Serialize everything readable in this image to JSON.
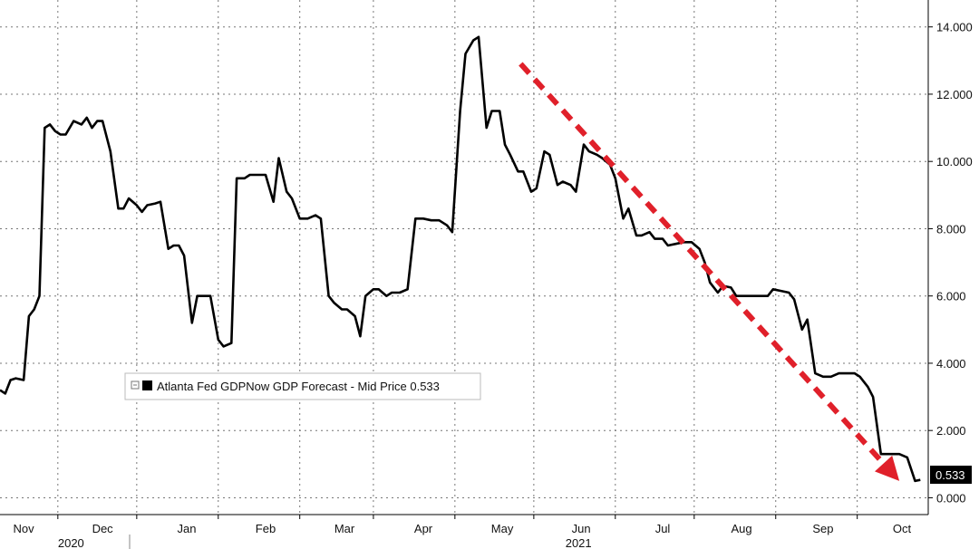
{
  "chart_data": {
    "type": "line",
    "title": "",
    "xlabel": "",
    "ylabel": "",
    "ylim": [
      -0.5,
      14.8
    ],
    "y_ticks": [
      "0.000",
      "2.000",
      "4.000",
      "6.000",
      "8.000",
      "10.000",
      "12.000",
      "14.000"
    ],
    "y_tick_values": [
      0,
      2,
      4,
      6,
      8,
      10,
      12,
      14
    ],
    "x_range": [
      "2020-10-24",
      "2021-10-12"
    ],
    "x_month_labels": [
      {
        "label": "Nov",
        "date": "2020-11-02"
      },
      {
        "label": "Dec",
        "date": "2020-12-02"
      },
      {
        "label": "Jan",
        "date": "2021-01-03"
      },
      {
        "label": "Feb",
        "date": "2021-02-02"
      },
      {
        "label": "Mar",
        "date": "2021-03-04"
      },
      {
        "label": "Apr",
        "date": "2021-04-03"
      },
      {
        "label": "May",
        "date": "2021-05-03"
      },
      {
        "label": "Jun",
        "date": "2021-06-02"
      },
      {
        "label": "Jul",
        "date": "2021-07-03"
      },
      {
        "label": "Aug",
        "date": "2021-08-02"
      },
      {
        "label": "Sep",
        "date": "2021-09-02"
      },
      {
        "label": "Oct",
        "date": "2021-10-02"
      }
    ],
    "x_year_labels": [
      {
        "label": "2020",
        "date": "2020-11-20"
      },
      {
        "label": "2021",
        "date": "2021-06-01"
      }
    ],
    "x_gridlines": [
      "2020-11-15",
      "2020-12-15",
      "2021-01-15",
      "2021-02-15",
      "2021-03-15",
      "2021-04-15",
      "2021-05-15",
      "2021-06-15",
      "2021-07-15",
      "2021-08-15",
      "2021-09-15"
    ],
    "legend": {
      "position": "lower-left",
      "entries": [
        "Atlanta Fed GDPNow GDP Forecast - Mid Price 0.533"
      ]
    },
    "last_value_label": "0.533",
    "trend_arrow": {
      "color": "#e0202a",
      "from": {
        "x": "2021-05-10",
        "y": 12.9
      },
      "to": {
        "x": "2021-10-01",
        "y": 0.5
      }
    },
    "series": [
      {
        "name": "Atlanta Fed GDPNow GDP Forecast - Mid Price",
        "color": "#000000",
        "points": [
          [
            "2020-10-24",
            3.2
          ],
          [
            "2020-10-26",
            3.1
          ],
          [
            "2020-10-28",
            3.5
          ],
          [
            "2020-10-30",
            3.55
          ],
          [
            "2020-11-02",
            3.5
          ],
          [
            "2020-11-04",
            5.4
          ],
          [
            "2020-11-06",
            5.6
          ],
          [
            "2020-11-08",
            6.0
          ],
          [
            "2020-11-10",
            11.0
          ],
          [
            "2020-11-12",
            11.1
          ],
          [
            "2020-11-14",
            10.9
          ],
          [
            "2020-11-16",
            10.8
          ],
          [
            "2020-11-18",
            10.8
          ],
          [
            "2020-11-21",
            11.2
          ],
          [
            "2020-11-24",
            11.1
          ],
          [
            "2020-11-26",
            11.3
          ],
          [
            "2020-11-28",
            11.0
          ],
          [
            "2020-11-30",
            11.2
          ],
          [
            "2020-12-02",
            11.2
          ],
          [
            "2020-12-05",
            10.3
          ],
          [
            "2020-12-08",
            8.6
          ],
          [
            "2020-12-10",
            8.6
          ],
          [
            "2020-12-12",
            8.9
          ],
          [
            "2020-12-15",
            8.7
          ],
          [
            "2020-12-17",
            8.5
          ],
          [
            "2020-12-19",
            8.7
          ],
          [
            "2020-12-22",
            8.75
          ],
          [
            "2020-12-24",
            8.8
          ],
          [
            "2020-12-27",
            7.4
          ],
          [
            "2020-12-29",
            7.5
          ],
          [
            "2020-12-31",
            7.5
          ],
          [
            "2021-01-02",
            7.2
          ],
          [
            "2021-01-05",
            5.2
          ],
          [
            "2021-01-07",
            6.0
          ],
          [
            "2021-01-10",
            6.0
          ],
          [
            "2021-01-12",
            6.0
          ],
          [
            "2021-01-15",
            4.7
          ],
          [
            "2021-01-17",
            4.5
          ],
          [
            "2021-01-20",
            4.6
          ],
          [
            "2021-01-22",
            9.5
          ],
          [
            "2021-01-25",
            9.5
          ],
          [
            "2021-01-27",
            9.6
          ],
          [
            "2021-01-30",
            9.6
          ],
          [
            "2021-02-02",
            9.6
          ],
          [
            "2021-02-05",
            8.8
          ],
          [
            "2021-02-07",
            10.1
          ],
          [
            "2021-02-10",
            9.1
          ],
          [
            "2021-02-12",
            8.9
          ],
          [
            "2021-02-15",
            8.3
          ],
          [
            "2021-02-18",
            8.3
          ],
          [
            "2021-02-21",
            8.4
          ],
          [
            "2021-02-23",
            8.3
          ],
          [
            "2021-02-26",
            6.0
          ],
          [
            "2021-02-28",
            5.8
          ],
          [
            "2021-03-03",
            5.6
          ],
          [
            "2021-03-05",
            5.6
          ],
          [
            "2021-03-08",
            5.4
          ],
          [
            "2021-03-10",
            4.8
          ],
          [
            "2021-03-12",
            6.0
          ],
          [
            "2021-03-15",
            6.2
          ],
          [
            "2021-03-17",
            6.2
          ],
          [
            "2021-03-20",
            6.0
          ],
          [
            "2021-03-22",
            6.1
          ],
          [
            "2021-03-25",
            6.1
          ],
          [
            "2021-03-28",
            6.2
          ],
          [
            "2021-03-31",
            8.3
          ],
          [
            "2021-04-03",
            8.3
          ],
          [
            "2021-04-06",
            8.25
          ],
          [
            "2021-04-09",
            8.25
          ],
          [
            "2021-04-12",
            8.1
          ],
          [
            "2021-04-14",
            7.9
          ],
          [
            "2021-04-17",
            11.5
          ],
          [
            "2021-04-19",
            13.2
          ],
          [
            "2021-04-22",
            13.6
          ],
          [
            "2021-04-24",
            13.7
          ],
          [
            "2021-04-27",
            11.0
          ],
          [
            "2021-04-29",
            11.5
          ],
          [
            "2021-05-02",
            11.5
          ],
          [
            "2021-05-04",
            10.5
          ],
          [
            "2021-05-06",
            10.2
          ],
          [
            "2021-05-09",
            9.7
          ],
          [
            "2021-05-11",
            9.7
          ],
          [
            "2021-05-14",
            9.1
          ],
          [
            "2021-05-16",
            9.2
          ],
          [
            "2021-05-19",
            10.3
          ],
          [
            "2021-05-21",
            10.2
          ],
          [
            "2021-05-24",
            9.3
          ],
          [
            "2021-05-26",
            9.4
          ],
          [
            "2021-05-29",
            9.3
          ],
          [
            "2021-05-31",
            9.1
          ],
          [
            "2021-06-03",
            10.5
          ],
          [
            "2021-06-05",
            10.3
          ],
          [
            "2021-06-08",
            10.2
          ],
          [
            "2021-06-10",
            10.1
          ],
          [
            "2021-06-13",
            9.9
          ],
          [
            "2021-06-15",
            9.5
          ],
          [
            "2021-06-18",
            8.3
          ],
          [
            "2021-06-20",
            8.6
          ],
          [
            "2021-06-23",
            7.8
          ],
          [
            "2021-06-25",
            7.8
          ],
          [
            "2021-06-28",
            7.9
          ],
          [
            "2021-06-30",
            7.7
          ],
          [
            "2021-07-03",
            7.7
          ],
          [
            "2021-07-05",
            7.5
          ],
          [
            "2021-07-08",
            7.55
          ],
          [
            "2021-07-11",
            7.6
          ],
          [
            "2021-07-14",
            7.6
          ],
          [
            "2021-07-17",
            7.4
          ],
          [
            "2021-07-19",
            7.0
          ],
          [
            "2021-07-21",
            6.4
          ],
          [
            "2021-07-24",
            6.1
          ],
          [
            "2021-07-26",
            6.3
          ],
          [
            "2021-07-29",
            6.25
          ],
          [
            "2021-07-31",
            6.0
          ],
          [
            "2021-08-03",
            6.0
          ],
          [
            "2021-08-06",
            6.0
          ],
          [
            "2021-08-09",
            6.0
          ],
          [
            "2021-08-12",
            6.0
          ],
          [
            "2021-08-14",
            6.2
          ],
          [
            "2021-08-17",
            6.15
          ],
          [
            "2021-08-20",
            6.1
          ],
          [
            "2021-08-22",
            5.9
          ],
          [
            "2021-08-25",
            5.0
          ],
          [
            "2021-08-27",
            5.3
          ],
          [
            "2021-08-30",
            3.7
          ],
          [
            "2021-09-02",
            3.6
          ],
          [
            "2021-09-05",
            3.6
          ],
          [
            "2021-09-08",
            3.7
          ],
          [
            "2021-09-11",
            3.7
          ],
          [
            "2021-09-14",
            3.7
          ],
          [
            "2021-09-16",
            3.6
          ],
          [
            "2021-09-19",
            3.3
          ],
          [
            "2021-09-21",
            3.0
          ],
          [
            "2021-09-24",
            1.3
          ],
          [
            "2021-09-26",
            1.3
          ],
          [
            "2021-09-29",
            1.3
          ],
          [
            "2021-10-01",
            1.3
          ],
          [
            "2021-10-04",
            1.2
          ],
          [
            "2021-10-07",
            0.5
          ],
          [
            "2021-10-09",
            0.533
          ]
        ]
      }
    ]
  }
}
